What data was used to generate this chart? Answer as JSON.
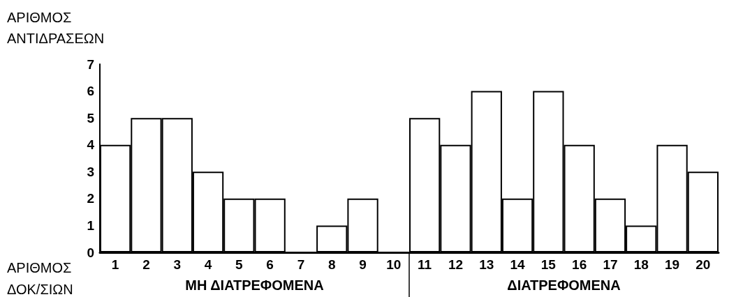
{
  "chart_data": {
    "type": "bar",
    "ylabel": "ΑΡΙΘΜΟΣ ΑΝΤΙΔΡΑΣΕΩΝ",
    "xlabel": "ΑΡΙΘΜΟΣ ΔΟΚ/ΣΙΩΝ",
    "categories": [
      "1",
      "2",
      "3",
      "4",
      "5",
      "6",
      "7",
      "8",
      "9",
      "10",
      "11",
      "12",
      "13",
      "14",
      "15",
      "16",
      "17",
      "18",
      "19",
      "20"
    ],
    "values": [
      4,
      5,
      5,
      3,
      2,
      2,
      0,
      1,
      2,
      0,
      5,
      4,
      6,
      2,
      6,
      4,
      2,
      1,
      4,
      3
    ],
    "color": "#ffffff",
    "ylim": [
      0,
      7
    ],
    "yticks": [
      0,
      1,
      2,
      3,
      4,
      5,
      6,
      7
    ],
    "grid": false,
    "annotations": [
      "ΜΗ ΔΙΑΤΡΕΦΟΜΕΝΑ",
      "ΔΙΑΤΡΕΦΟΜΕΝΑ"
    ]
  }
}
